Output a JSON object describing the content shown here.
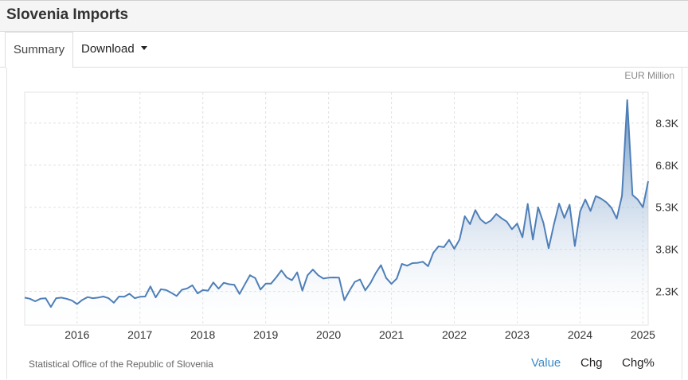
{
  "page": {
    "title": "Slovenia Imports"
  },
  "tabs": {
    "summary": "Summary",
    "download": "Download"
  },
  "chart_unit": "EUR Million",
  "source": "Statistical Office of the Republic of Slovenia",
  "toggles": {
    "value": "Value",
    "chg": "Chg",
    "chgpct": "Chg%"
  },
  "colors": {
    "line": "#4e7fb8",
    "fill_top": "#4e7fb8",
    "fill_bottom": "#ffffff",
    "grid": "#e0e0e0",
    "active_toggle": "#3d8ac8"
  },
  "chart_data": {
    "type": "area",
    "title": "",
    "xlabel": "",
    "ylabel": "EUR Million",
    "x_ticks": [
      "2016",
      "2017",
      "2018",
      "2019",
      "2020",
      "2021",
      "2022",
      "2023",
      "2024",
      "2025"
    ],
    "y_ticks": [
      2300,
      3800,
      5300,
      6800,
      8300
    ],
    "y_tick_labels": [
      "2.3K",
      "3.8K",
      "5.3K",
      "6.8K",
      "8.3K"
    ],
    "ylim": [
      1100,
      9400
    ],
    "xlim": [
      "2015-03",
      "2025-02"
    ],
    "grid": true,
    "series": [
      {
        "x": [
          "2015-03",
          "2015-04",
          "2015-05",
          "2015-06",
          "2015-07",
          "2015-08",
          "2015-09",
          "2015-10",
          "2015-11",
          "2015-12",
          "2016-01",
          "2016-02",
          "2016-03",
          "2016-04",
          "2016-05",
          "2016-06",
          "2016-07",
          "2016-08",
          "2016-09",
          "2016-10",
          "2016-11",
          "2016-12",
          "2017-01",
          "2017-02",
          "2017-03",
          "2017-04",
          "2017-05",
          "2017-06",
          "2017-07",
          "2017-08",
          "2017-09",
          "2017-10",
          "2017-11",
          "2017-12",
          "2018-01",
          "2018-02",
          "2018-03",
          "2018-04",
          "2018-05",
          "2018-06",
          "2018-07",
          "2018-08",
          "2018-09",
          "2018-10",
          "2018-11",
          "2018-12",
          "2019-01",
          "2019-02",
          "2019-03",
          "2019-04",
          "2019-05",
          "2019-06",
          "2019-07",
          "2019-08",
          "2019-09",
          "2019-10",
          "2019-11",
          "2019-12",
          "2020-01",
          "2020-02",
          "2020-03",
          "2020-04",
          "2020-05",
          "2020-06",
          "2020-07",
          "2020-08",
          "2020-09",
          "2020-10",
          "2020-11",
          "2020-12",
          "2021-01",
          "2021-02",
          "2021-03",
          "2021-04",
          "2021-05",
          "2021-06",
          "2021-07",
          "2021-08",
          "2021-09",
          "2021-10",
          "2021-11",
          "2021-12",
          "2022-01",
          "2022-02",
          "2022-03",
          "2022-04",
          "2022-05",
          "2022-06",
          "2022-07",
          "2022-08",
          "2022-09",
          "2022-10",
          "2022-11",
          "2022-12",
          "2023-01",
          "2023-02",
          "2023-03",
          "2023-04",
          "2023-05",
          "2023-06",
          "2023-07",
          "2023-08",
          "2023-09",
          "2023-10",
          "2023-11",
          "2023-12",
          "2024-01",
          "2024-02",
          "2024-03",
          "2024-04",
          "2024-05",
          "2024-06",
          "2024-07",
          "2024-08",
          "2024-09",
          "2024-10",
          "2024-11",
          "2024-12",
          "2025-01",
          "2025-02"
        ],
        "values": [
          2080,
          2040,
          1950,
          2040,
          2060,
          1750,
          2060,
          2080,
          2040,
          1980,
          1850,
          2000,
          2100,
          2060,
          2080,
          2120,
          2060,
          1900,
          2120,
          2110,
          2220,
          2060,
          2110,
          2120,
          2480,
          2090,
          2380,
          2350,
          2250,
          2140,
          2360,
          2410,
          2520,
          2230,
          2350,
          2330,
          2620,
          2400,
          2610,
          2560,
          2540,
          2210,
          2550,
          2880,
          2780,
          2370,
          2580,
          2580,
          2800,
          3050,
          2800,
          2700,
          2980,
          2330,
          2880,
          3080,
          2880,
          2760,
          2790,
          2800,
          2790,
          1990,
          2330,
          2640,
          2730,
          2340,
          2600,
          2950,
          3240,
          2780,
          2570,
          2760,
          3280,
          3220,
          3310,
          3320,
          3360,
          3200,
          3680,
          3910,
          3880,
          4140,
          3820,
          4150,
          4980,
          4700,
          5200,
          4870,
          4720,
          4830,
          5060,
          4910,
          4790,
          4520,
          4720,
          4230,
          5420,
          4150,
          5300,
          4750,
          3840,
          4690,
          5430,
          4920,
          5390,
          3920,
          5150,
          5580,
          5170,
          5700,
          5610,
          5480,
          5280,
          4900,
          5710,
          9120,
          5740,
          5580,
          5300,
          6230
        ]
      }
    ]
  }
}
